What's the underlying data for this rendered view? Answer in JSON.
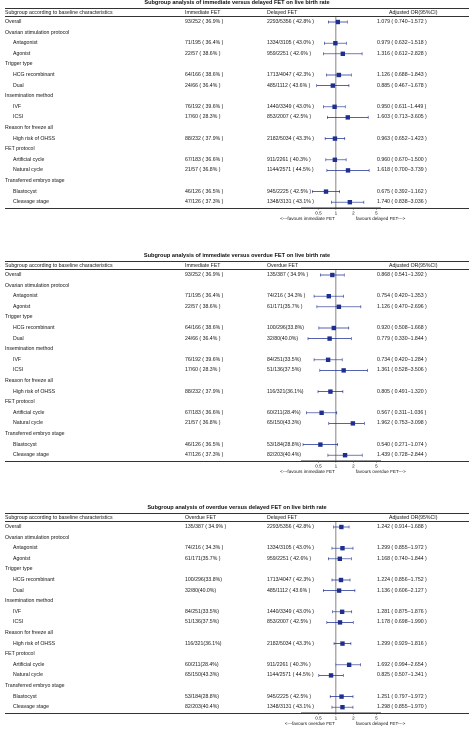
{
  "colors": {
    "marker": "#1f2f8f",
    "line": "#1f2f8f",
    "text": "#111111"
  },
  "panels": [
    {
      "title": "Subgroup analysis of immediate versus delayed FET on live birth rate",
      "headers": [
        "Subgroup according to baseline characteristics",
        "Immediate FET",
        "Delayed FET",
        "Adjusted OR(95%CI)"
      ],
      "axis": {
        "ticks": [
          "0.5",
          "1",
          "2",
          "5"
        ],
        "left_note": "<---favours immediate FET",
        "right_note": "favours delayed FET--->"
      },
      "rows": [
        {
          "type": "data",
          "label": "Overall",
          "a": "93/252 ( 36.9% )",
          "b": "2293/5356 ( 42.8% )",
          "or": "1.079 ( 0.740−1.572 )",
          "est": 1.079,
          "lo": 0.74,
          "hi": 1.572
        },
        {
          "type": "section",
          "label": "Ovarian stimulation protocol"
        },
        {
          "type": "data",
          "label": "Antagonist",
          "a": "71/195 ( 36.4% )",
          "b": "1334/3105 ( 43.0% )",
          "or": "0.979 ( 0.632−1.518 )",
          "est": 0.979,
          "lo": 0.632,
          "hi": 1.518
        },
        {
          "type": "data",
          "label": "Agonist",
          "a": "22/57 ( 38.6% )",
          "b": "959/2251 ( 42.6% )",
          "or": "1.316 ( 0.612−2.828 )",
          "est": 1.316,
          "lo": 0.612,
          "hi": 2.828
        },
        {
          "type": "section",
          "label": "Trigger type"
        },
        {
          "type": "data",
          "label": "HCG recombinant",
          "a": "64/166 ( 38.6% )",
          "b": "1713/4047 ( 42.3% )",
          "or": "1.126 ( 0.688−1.843 )",
          "est": 1.126,
          "lo": 0.688,
          "hi": 1.843
        },
        {
          "type": "data",
          "label": "Dual",
          "a": "24/66 ( 36.4% )",
          "b": "485/1112 ( 43.6% )",
          "or": "0.885 ( 0.467−1.678 )",
          "est": 0.885,
          "lo": 0.467,
          "hi": 1.678
        },
        {
          "type": "section",
          "label": "Insemination method"
        },
        {
          "type": "data",
          "label": "IVF",
          "a": "76/192 ( 39.6% )",
          "b": "1440/3349 ( 43.0% )",
          "or": "0.950 ( 0.611−1.449 )",
          "est": 0.95,
          "lo": 0.611,
          "hi": 1.449
        },
        {
          "type": "data",
          "label": "ICSI",
          "a": "17/60 ( 28.3% )",
          "b": "853/2007 ( 42.5% )",
          "or": "1.603 ( 0.713−3.605 )",
          "est": 1.603,
          "lo": 0.713,
          "hi": 3.605
        },
        {
          "type": "section",
          "label": "Reason for freeze all"
        },
        {
          "type": "data",
          "label": "High risk of OHSS",
          "a": "88/232 ( 37.9% )",
          "b": "2182/5034 ( 43.3% )",
          "or": "0.963 ( 0.652−1.423 )",
          "est": 0.963,
          "lo": 0.652,
          "hi": 1.423
        },
        {
          "type": "section",
          "label": "FET protocol"
        },
        {
          "type": "data",
          "label": "Artificial cycle",
          "a": "67/183 ( 36.6% )",
          "b": "911/2261 ( 40.3% )",
          "or": "0.960 ( 0.670−1.500 )",
          "est": 0.96,
          "lo": 0.67,
          "hi": 1.5
        },
        {
          "type": "data",
          "label": "Natural cycle",
          "a": "21/57 ( 36.8% )",
          "b": "1144/2571 ( 44.5% )",
          "or": "1.618 ( 0.700−3.739 )",
          "est": 1.618,
          "lo": 0.7,
          "hi": 3.739
        },
        {
          "type": "section",
          "label": "Transferred embryo stage"
        },
        {
          "type": "data",
          "label": "Blastocyst",
          "a": "46/126 ( 36.5% )",
          "b": "945/2225 ( 42.5% )",
          "or": "0.675 ( 0.392−1.162 )",
          "est": 0.675,
          "lo": 0.392,
          "hi": 1.162
        },
        {
          "type": "data",
          "label": "Cleavage stage",
          "a": "47/126 ( 37.3% )",
          "b": "1348/3131 ( 43.1% )",
          "or": "1.740 ( 0.838−3.036 )",
          "est": 1.74,
          "lo": 0.838,
          "hi": 3.036
        }
      ]
    },
    {
      "title": "Subgroup analysis of immediate versus overdue FET on live birth rate",
      "headers": [
        "Subgroup according to baseline characteristics",
        "Immediate FET",
        "Overdue FET",
        "Adjusted OR(95%CI)"
      ],
      "axis": {
        "ticks": [
          "0.5",
          "1",
          "2",
          "5"
        ],
        "left_note": "<---favours immediate FET",
        "right_note": "favours overdue FET--->"
      },
      "rows": [
        {
          "type": "data",
          "label": "Overall",
          "a": "93/252 ( 36.9% )",
          "b": "135/387 ( 34.9% )",
          "or": "0.868 ( 0.541−1.392 )",
          "est": 0.868,
          "lo": 0.541,
          "hi": 1.392
        },
        {
          "type": "section",
          "label": "Ovarian stimulation protocol"
        },
        {
          "type": "data",
          "label": "Antagonist",
          "a": "71/195 ( 36.4% )",
          "b": "74/216 ( 34.3% )",
          "or": "0.754 ( 0.420−1.353 )",
          "est": 0.754,
          "lo": 0.42,
          "hi": 1.353
        },
        {
          "type": "data",
          "label": "Agonist",
          "a": "22/57 ( 38.6% )",
          "b": "61/171(35.7% )",
          "or": "1.126 ( 0.470−2.696 )",
          "est": 1.126,
          "lo": 0.47,
          "hi": 2.696
        },
        {
          "type": "section",
          "label": "Trigger type"
        },
        {
          "type": "data",
          "label": "HCG recombinant",
          "a": "64/166 ( 38.6% )",
          "b": "100/296(33.8%)",
          "or": "0.920 ( 0.508−1.668 )",
          "est": 0.92,
          "lo": 0.508,
          "hi": 1.668
        },
        {
          "type": "data",
          "label": "Dual",
          "a": "24/66 ( 36.4% )",
          "b": "32/80(40.0%)",
          "or": "0.779 ( 0.330−1.844 )",
          "est": 0.779,
          "lo": 0.33,
          "hi": 1.844
        },
        {
          "type": "section",
          "label": "Insemination method"
        },
        {
          "type": "data",
          "label": "IVF",
          "a": "76/192 ( 39.6% )",
          "b": "84/251(33.5%)",
          "or": "0.734 ( 0.420−1.284 )",
          "est": 0.734,
          "lo": 0.42,
          "hi": 1.284
        },
        {
          "type": "data",
          "label": "ICSI",
          "a": "17/60 ( 28.3% )",
          "b": "51/136(37.5%)",
          "or": "1.361 ( 0.528−3.506 )",
          "est": 1.361,
          "lo": 0.528,
          "hi": 3.506
        },
        {
          "type": "section",
          "label": "Reason for freeze all"
        },
        {
          "type": "data",
          "label": "High risk of OHSS",
          "a": "88/232 ( 37.9% )",
          "b": "116/321(36.1%)",
          "or": "0.805 ( 0.491−1.320 )",
          "est": 0.805,
          "lo": 0.491,
          "hi": 1.32
        },
        {
          "type": "section",
          "label": "FET protocol"
        },
        {
          "type": "data",
          "label": "Artificial cycle",
          "a": "67/183 ( 36.6% )",
          "b": "60/211(28.4%)",
          "or": "0.567 ( 0.311−1.036 )",
          "est": 0.567,
          "lo": 0.311,
          "hi": 1.036
        },
        {
          "type": "data",
          "label": "Natural cycle",
          "a": "21/57 ( 36.8% )",
          "b": "65/150(43.3%)",
          "or": "1.962 ( 0.753−3.098 )",
          "est": 1.962,
          "lo": 0.753,
          "hi": 3.098
        },
        {
          "type": "section",
          "label": "Transferred embryo stage"
        },
        {
          "type": "data",
          "label": "Blastocyst",
          "a": "46/126 ( 36.5% )",
          "b": "53/184(28.8%)",
          "or": "0.540 ( 0.271−1.074 )",
          "est": 0.54,
          "lo": 0.271,
          "hi": 1.074
        },
        {
          "type": "data",
          "label": "Cleavage stage",
          "a": "47/126 ( 37.3% )",
          "b": "82/203(40.4%)",
          "or": "1.439 ( 0.728−2.844 )",
          "est": 1.439,
          "lo": 0.728,
          "hi": 2.844
        }
      ]
    },
    {
      "title": "Subgroup analysis of overdue versus delayed FET on live birth rate",
      "headers": [
        "Subgroup according to baseline characteristics",
        "Overdue FET",
        "Delayed FET",
        "Adjusted OR(95%CI)"
      ],
      "axis": {
        "ticks": [
          "0.5",
          "1",
          "2",
          "5"
        ],
        "left_note": "<---favours overdue FET",
        "right_note": "favours delayed FET--->"
      },
      "rows": [
        {
          "type": "data",
          "label": "Overall",
          "a": "135/387 ( 34.9% )",
          "b": "2293/5356 ( 42.8% )",
          "or": "1.242 ( 0.914−1.688 )",
          "est": 1.242,
          "lo": 0.914,
          "hi": 1.688
        },
        {
          "type": "section",
          "label": "Ovarian stimulation protocol"
        },
        {
          "type": "data",
          "label": "Antagonist",
          "a": "74/216 ( 34.3% )",
          "b": "1334/3105 ( 43.0% )",
          "or": "1.299 ( 0.855−1.972 )",
          "est": 1.299,
          "lo": 0.855,
          "hi": 1.972
        },
        {
          "type": "data",
          "label": "Agonist",
          "a": "61/171(35.7% )",
          "b": "959/2251 ( 42.6% )",
          "or": "1.168 ( 0.740−1.844 )",
          "est": 1.168,
          "lo": 0.74,
          "hi": 1.844
        },
        {
          "type": "section",
          "label": "Trigger type"
        },
        {
          "type": "data",
          "label": "HCG recombinant",
          "a": "100/296(33.8%)",
          "b": "1713/4047 ( 42.3% )",
          "or": "1.224 ( 0.856−1.752 )",
          "est": 1.224,
          "lo": 0.856,
          "hi": 1.752
        },
        {
          "type": "data",
          "label": "Dual",
          "a": "32/80(40.0%)",
          "b": "485/1112 ( 43.6% )",
          "or": "1.136 ( 0.606−2.127 )",
          "est": 1.136,
          "lo": 0.606,
          "hi": 2.127
        },
        {
          "type": "section",
          "label": "Insemination method"
        },
        {
          "type": "data",
          "label": "IVF",
          "a": "84/251(33.5%)",
          "b": "1440/3349 ( 43.0% )",
          "or": "1.281 ( 0.875−1.876 )",
          "est": 1.281,
          "lo": 0.875,
          "hi": 1.876
        },
        {
          "type": "data",
          "label": "ICSI",
          "a": "51/136(37.5%)",
          "b": "853/2007 ( 42.5% )",
          "or": "1.178 ( 0.698−1.990 )",
          "est": 1.178,
          "lo": 0.698,
          "hi": 1.99
        },
        {
          "type": "section",
          "label": "Reason for freeze all"
        },
        {
          "type": "data",
          "label": "High risk of OHSS",
          "a": "116/321(36.1%)",
          "b": "2182/5034 ( 43.3% )",
          "or": "1.299 ( 0.929−1.816 )",
          "est": 1.299,
          "lo": 0.929,
          "hi": 1.816
        },
        {
          "type": "section",
          "label": "FET protocol"
        },
        {
          "type": "data",
          "label": "Artificial cycle",
          "a": "60/211(28.4%)",
          "b": "911/2261 ( 40.3% )",
          "or": "1.692 ( 0.994−2.654 )",
          "est": 1.692,
          "lo": 0.994,
          "hi": 2.654
        },
        {
          "type": "data",
          "label": "Natural cycle",
          "a": "65/150(43.3%)",
          "b": "1144/2571 ( 44.5% )",
          "or": "0.825 ( 0.507−1.341 )",
          "est": 0.825,
          "lo": 0.507,
          "hi": 1.341
        },
        {
          "type": "section",
          "label": "Transferred embryo stage"
        },
        {
          "type": "data",
          "label": "Blastocyst",
          "a": "53/184(28.8%)",
          "b": "945/2225 ( 42.5% )",
          "or": "1.251 ( 0.797−1.972 )",
          "est": 1.251,
          "lo": 0.797,
          "hi": 1.972
        },
        {
          "type": "data",
          "label": "Cleavage stage",
          "a": "82/203(40.4%)",
          "b": "1348/3131 ( 43.1% )",
          "or": "1.298 ( 0.855−1.970 )",
          "est": 1.298,
          "lo": 0.855,
          "hi": 1.97
        }
      ]
    }
  ]
}
